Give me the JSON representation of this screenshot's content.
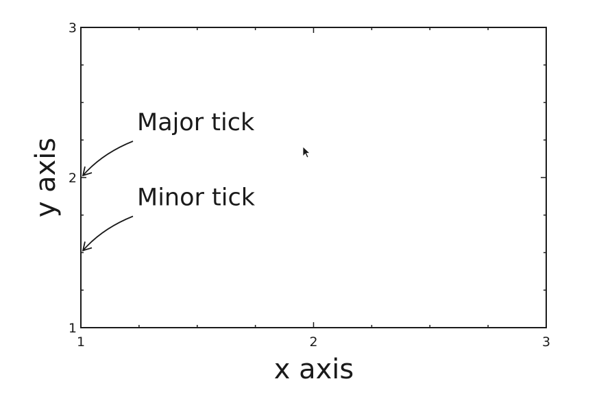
{
  "chart_data": {
    "type": "scatter",
    "title": "",
    "xlabel": "x axis",
    "ylabel": "y axis",
    "xlim": [
      1,
      3
    ],
    "ylim": [
      1,
      3
    ],
    "x_major_ticks": [
      1,
      2,
      3
    ],
    "y_major_ticks": [
      1,
      2,
      3
    ],
    "x_tick_labels": [
      "1",
      "2",
      "3"
    ],
    "y_tick_labels": [
      "1",
      "2",
      "3"
    ],
    "x_minor_ticks": [
      1.25,
      1.5,
      1.75,
      2.25,
      2.5,
      2.75
    ],
    "y_minor_ticks": [
      1.25,
      1.5,
      1.75,
      2.25,
      2.5,
      2.75
    ],
    "grid": false,
    "series": [],
    "annotations": [
      {
        "text": "Major tick",
        "target": [
          1,
          2
        ]
      },
      {
        "text": "Minor tick",
        "target": [
          1,
          1.5
        ]
      }
    ]
  }
}
